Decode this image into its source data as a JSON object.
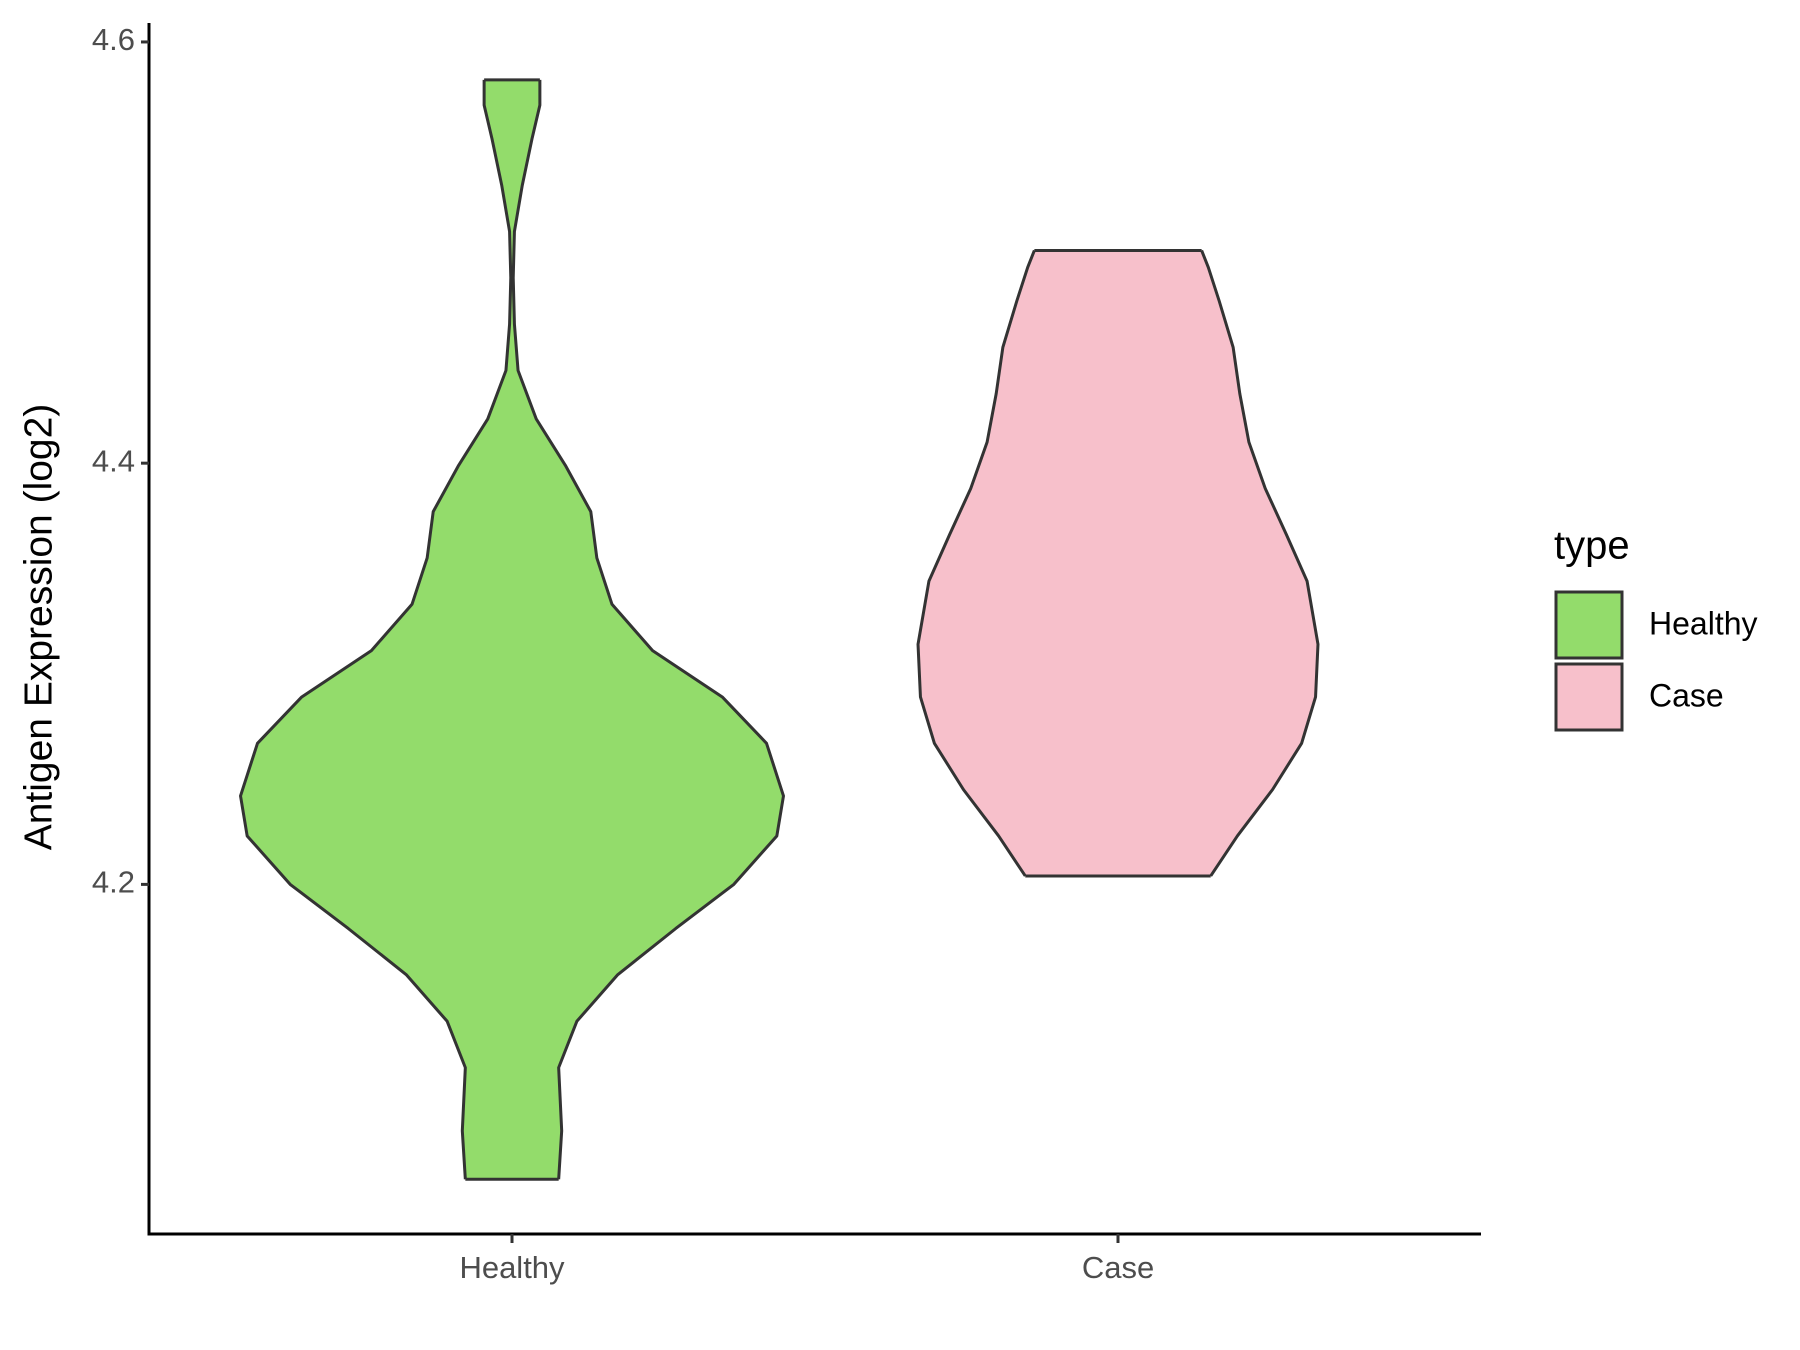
{
  "chart_data": {
    "type": "violin",
    "ylabel": "Antigen Expression (log2)",
    "categories": [
      "Healthy",
      "Case"
    ],
    "ylim": [
      4.034,
      4.609
    ],
    "yticks": [
      4.2,
      4.4,
      4.6
    ],
    "legend_title": "type",
    "legend": "right",
    "series": [
      {
        "name": "Healthy",
        "color": "#93dc6b",
        "y": [
          4.06,
          4.083,
          4.113,
          4.135,
          4.157,
          4.179,
          4.2,
          4.223,
          4.242,
          4.267,
          4.289,
          4.311,
          4.333,
          4.355,
          4.377,
          4.399,
          4.421,
          4.444,
          4.466,
          4.488,
          4.51,
          4.532,
          4.554,
          4.57,
          4.582
        ],
        "width": [
          0.077,
          0.082,
          0.077,
          0.107,
          0.174,
          0.27,
          0.366,
          0.437,
          0.448,
          0.42,
          0.347,
          0.232,
          0.165,
          0.14,
          0.13,
          0.088,
          0.04,
          0.01,
          0.004,
          0.002,
          0.004,
          0.017,
          0.033,
          0.046,
          0.046
        ]
      },
      {
        "name": "Case",
        "color": "#f7c0cb",
        "y": [
          4.204,
          4.223,
          4.245,
          4.267,
          4.289,
          4.314,
          4.344,
          4.366,
          4.388,
          4.41,
          4.433,
          4.455,
          4.477,
          4.493,
          4.501
        ],
        "width": [
          0.153,
          0.197,
          0.255,
          0.303,
          0.326,
          0.33,
          0.312,
          0.278,
          0.243,
          0.216,
          0.201,
          0.19,
          0.167,
          0.149,
          0.138
        ]
      }
    ]
  }
}
